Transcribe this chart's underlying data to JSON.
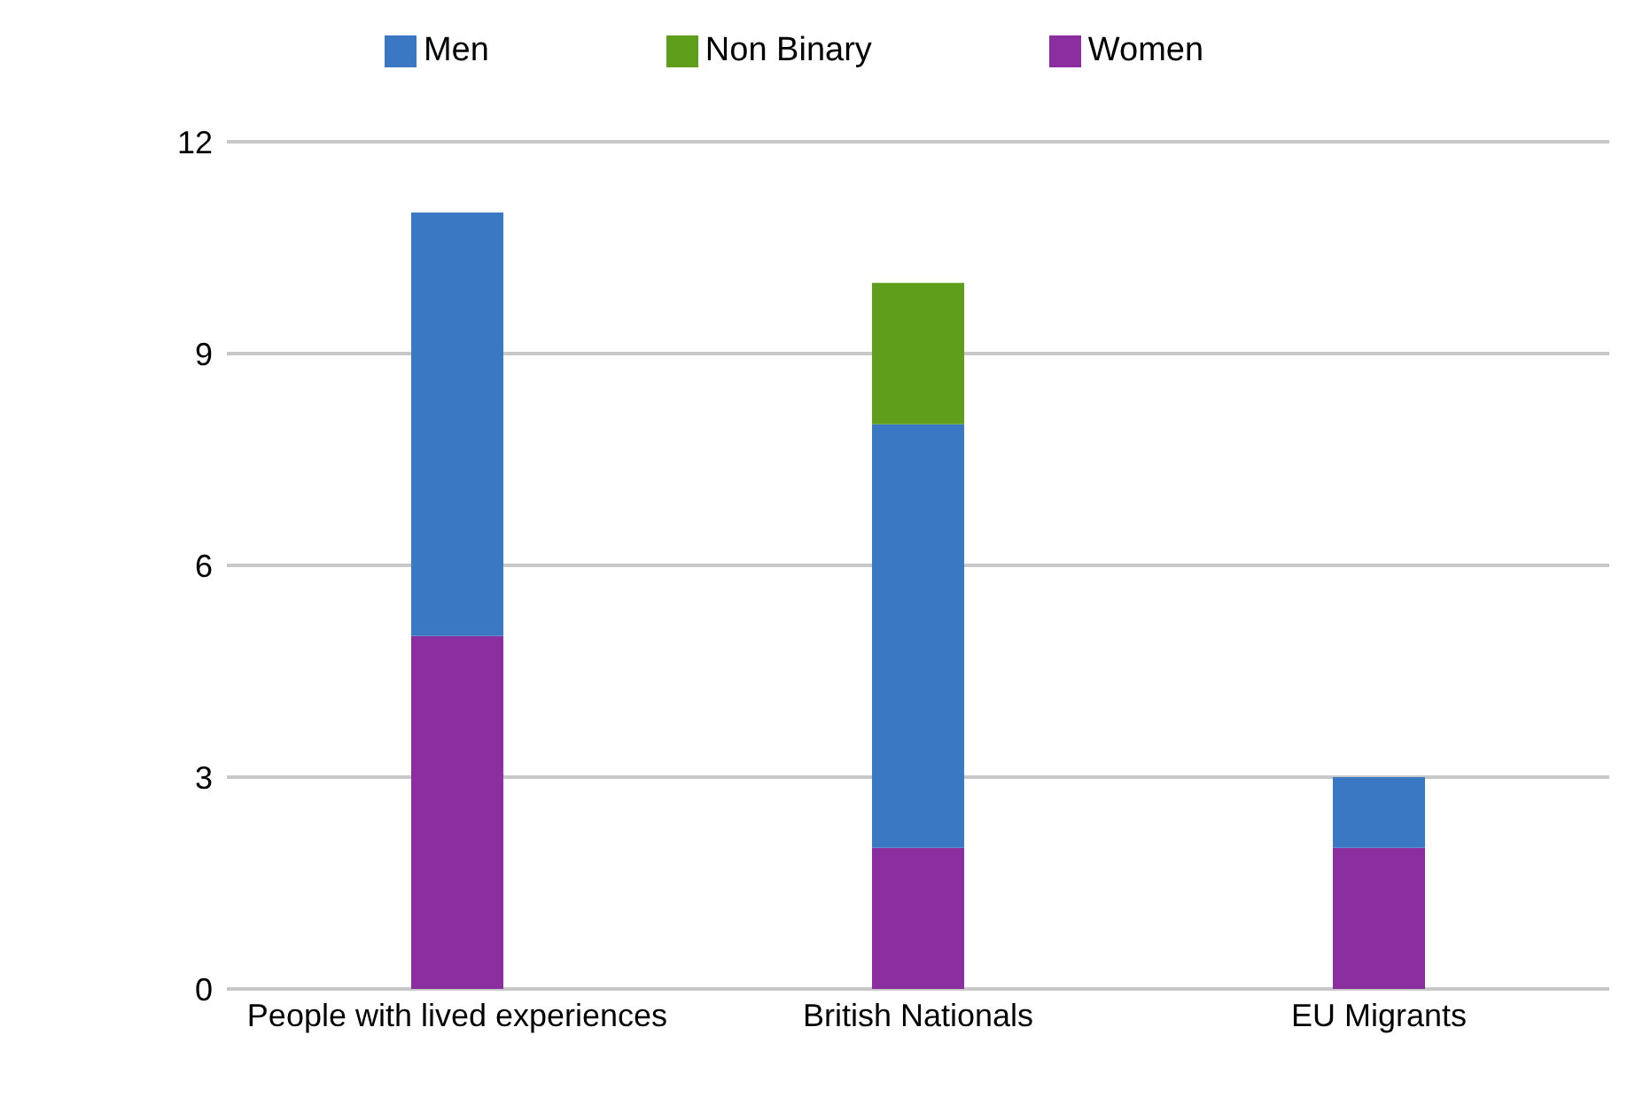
{
  "chart_data": {
    "type": "bar",
    "stacked": true,
    "categories": [
      "People with lived experiences",
      "British Nationals",
      "EU Migrants"
    ],
    "series": [
      {
        "name": "Women",
        "color": "#8b2fa0",
        "values": [
          5,
          2,
          2
        ]
      },
      {
        "name": "Men",
        "color": "#3a78c4",
        "values": [
          6,
          6,
          1
        ]
      },
      {
        "name": "Non Binary",
        "color": "#5e9e1a",
        "values": [
          0,
          2,
          0
        ]
      }
    ],
    "ylim": [
      0,
      12
    ],
    "yticks": [
      0,
      3,
      6,
      9,
      12
    ],
    "grid": "y",
    "legend": "top"
  }
}
